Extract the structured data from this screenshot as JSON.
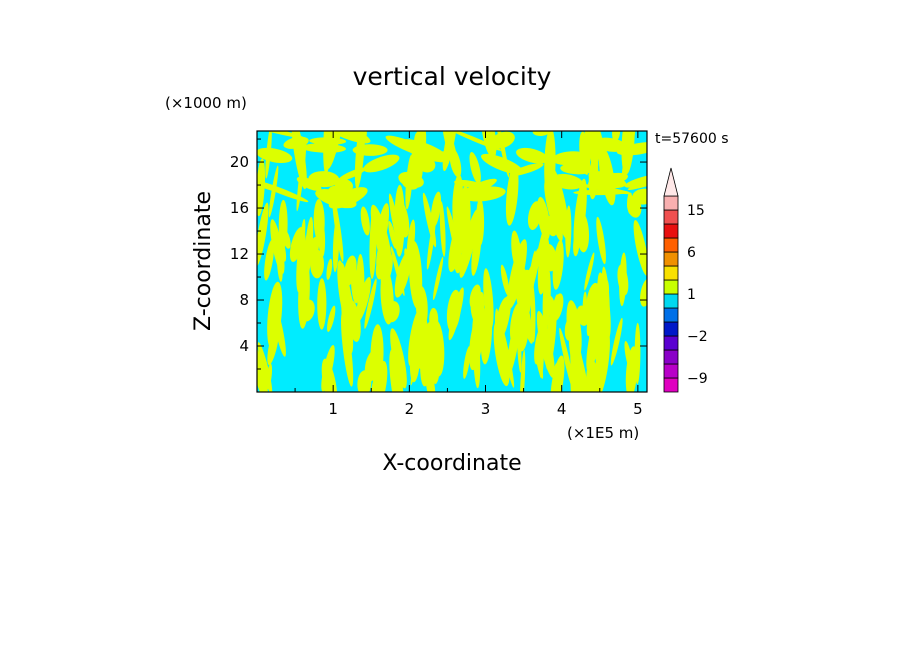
{
  "chart_data": {
    "type": "heatmap",
    "title": "vertical velocity",
    "xlabel": "X-coordinate",
    "ylabel": "Z-coordinate",
    "x_unit_label": "(×1E5 m)",
    "y_unit_label": "(×1000 m)",
    "time_label": "t=57600 s",
    "xlim": [
      0,
      5.12
    ],
    "ylim": [
      0,
      22.7
    ],
    "x_ticks": [
      1,
      2,
      3,
      4,
      5
    ],
    "y_ticks": [
      4,
      8,
      12,
      16,
      20
    ],
    "x_tick_labels": [
      "1",
      "2",
      "3",
      "4",
      "5"
    ],
    "y_tick_labels": [
      "4",
      "8",
      "12",
      "16",
      "20"
    ],
    "field_colors": {
      "negative": "#00ecff",
      "positive": "#dcff00"
    },
    "colorbar": {
      "levels": [
        -12,
        -9,
        -6,
        -4,
        -2,
        -1,
        0,
        1,
        2,
        4,
        6,
        9,
        12,
        15,
        20
      ],
      "colors": [
        "#e000c0",
        "#b800c8",
        "#8a00c8",
        "#5a00d0",
        "#0018c8",
        "#0070e8",
        "#00d8f0",
        "#c8ff00",
        "#f8e000",
        "#f09000",
        "#ff6000",
        "#e81010",
        "#f05050",
        "#f8b0b0"
      ],
      "extend_top_color": "#ffe8e8",
      "tick_labels": [
        {
          "label": "15",
          "value": 15
        },
        {
          "label": "6",
          "value": 6
        },
        {
          "label": "1",
          "value": 1
        },
        {
          "label": "−2",
          "value": -2
        },
        {
          "label": "−9",
          "value": -9
        }
      ]
    }
  }
}
